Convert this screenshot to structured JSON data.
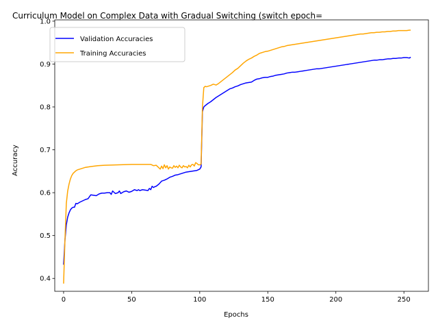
{
  "chart_data": {
    "type": "line",
    "title": "Curriculum Model on Complex Data with Gradual Switching (switch epoch=",
    "xlabel": "Epochs",
    "ylabel": "Accuracy",
    "xlim": [
      -6.5,
      268
    ],
    "ylim": [
      0.37,
      1.003
    ],
    "xticks": [
      0,
      50,
      100,
      150,
      200,
      250
    ],
    "yticks": [
      0.4,
      0.5,
      0.6,
      0.7,
      0.8,
      0.9,
      1.0
    ],
    "ytick_labels": [
      "0.4",
      "0.5",
      "0.6",
      "0.7",
      "0.8",
      "0.9",
      "1.0"
    ],
    "grid": false,
    "legend_position": "upper-left",
    "series": [
      {
        "name": "Validation Accuracies",
        "color": "#0000ff",
        "x": [
          0,
          1,
          2,
          3,
          4,
          5,
          6,
          7,
          8,
          9,
          10,
          12,
          14,
          16,
          18,
          20,
          22,
          24,
          26,
          28,
          30,
          32,
          34,
          35,
          36,
          38,
          40,
          41,
          42,
          44,
          46,
          48,
          50,
          52,
          54,
          55,
          56,
          58,
          60,
          62,
          63,
          64,
          65,
          66,
          67,
          68,
          70,
          72,
          74,
          76,
          78,
          80,
          82,
          84,
          86,
          88,
          90,
          92,
          94,
          96,
          98,
          100,
          101,
          102,
          103,
          104,
          106,
          108,
          110,
          112,
          114,
          116,
          118,
          120,
          122,
          124,
          126,
          128,
          130,
          132,
          134,
          136,
          138,
          140,
          142,
          144,
          146,
          148,
          150,
          152,
          154,
          156,
          158,
          160,
          162,
          164,
          166,
          168,
          170,
          172,
          174,
          176,
          178,
          180,
          182,
          184,
          186,
          188,
          190,
          192,
          194,
          196,
          198,
          200,
          202,
          204,
          206,
          208,
          210,
          212,
          214,
          216,
          218,
          220,
          222,
          224,
          226,
          228,
          230,
          232,
          234,
          236,
          238,
          240,
          242,
          244,
          246,
          248,
          250,
          252,
          254,
          255
        ],
        "y": [
          0.432,
          0.49,
          0.525,
          0.543,
          0.553,
          0.56,
          0.564,
          0.566,
          0.566,
          0.575,
          0.574,
          0.578,
          0.581,
          0.584,
          0.586,
          0.595,
          0.594,
          0.593,
          0.597,
          0.599,
          0.599,
          0.6,
          0.6,
          0.596,
          0.604,
          0.598,
          0.6,
          0.604,
          0.598,
          0.602,
          0.604,
          0.601,
          0.603,
          0.607,
          0.605,
          0.607,
          0.605,
          0.607,
          0.606,
          0.605,
          0.61,
          0.607,
          0.615,
          0.612,
          0.614,
          0.615,
          0.62,
          0.627,
          0.629,
          0.632,
          0.636,
          0.638,
          0.641,
          0.642,
          0.644,
          0.646,
          0.648,
          0.649,
          0.65,
          0.651,
          0.652,
          0.655,
          0.66,
          0.789,
          0.8,
          0.803,
          0.808,
          0.812,
          0.817,
          0.822,
          0.826,
          0.83,
          0.834,
          0.838,
          0.842,
          0.844,
          0.847,
          0.849,
          0.852,
          0.854,
          0.856,
          0.857,
          0.858,
          0.862,
          0.865,
          0.866,
          0.868,
          0.869,
          0.869,
          0.871,
          0.872,
          0.874,
          0.875,
          0.876,
          0.877,
          0.879,
          0.88,
          0.881,
          0.881,
          0.882,
          0.883,
          0.884,
          0.885,
          0.886,
          0.887,
          0.888,
          0.889,
          0.889,
          0.89,
          0.891,
          0.892,
          0.893,
          0.894,
          0.895,
          0.896,
          0.897,
          0.898,
          0.899,
          0.9,
          0.901,
          0.902,
          0.903,
          0.904,
          0.905,
          0.906,
          0.907,
          0.908,
          0.909,
          0.909,
          0.91,
          0.91,
          0.911,
          0.912,
          0.912,
          0.913,
          0.913,
          0.914,
          0.914,
          0.915,
          0.915,
          0.914,
          0.916
        ]
      },
      {
        "name": "Training Accuracies",
        "color": "#ffa500",
        "x": [
          0,
          1,
          2,
          3,
          4,
          5,
          6,
          7,
          8,
          9,
          10,
          12,
          14,
          16,
          18,
          20,
          25,
          30,
          40,
          50,
          60,
          64,
          66,
          68,
          70,
          71,
          72,
          73,
          74,
          75,
          76,
          77,
          78,
          79,
          80,
          81,
          82,
          83,
          84,
          85,
          86,
          87,
          88,
          89,
          90,
          91,
          92,
          93,
          94,
          95,
          96,
          97,
          98,
          99,
          100,
          101,
          102,
          103,
          104,
          105,
          106,
          108,
          110,
          112,
          114,
          116,
          118,
          120,
          122,
          124,
          126,
          128,
          130,
          132,
          134,
          136,
          138,
          140,
          142,
          144,
          146,
          148,
          150,
          152,
          154,
          156,
          158,
          160,
          162,
          164,
          166,
          168,
          170,
          172,
          174,
          176,
          178,
          180,
          182,
          184,
          186,
          188,
          190,
          192,
          194,
          196,
          198,
          200,
          202,
          204,
          206,
          208,
          210,
          212,
          214,
          216,
          218,
          220,
          222,
          224,
          226,
          228,
          230,
          232,
          234,
          236,
          238,
          240,
          242,
          244,
          246,
          248,
          250,
          252,
          254,
          255
        ],
        "y": [
          0.388,
          0.49,
          0.575,
          0.604,
          0.62,
          0.632,
          0.64,
          0.645,
          0.648,
          0.651,
          0.653,
          0.655,
          0.657,
          0.659,
          0.66,
          0.661,
          0.663,
          0.664,
          0.665,
          0.666,
          0.666,
          0.666,
          0.663,
          0.664,
          0.658,
          0.655,
          0.662,
          0.656,
          0.665,
          0.658,
          0.663,
          0.655,
          0.66,
          0.658,
          0.657,
          0.663,
          0.659,
          0.662,
          0.658,
          0.664,
          0.66,
          0.658,
          0.663,
          0.66,
          0.661,
          0.658,
          0.664,
          0.66,
          0.665,
          0.666,
          0.662,
          0.67,
          0.668,
          0.665,
          0.665,
          0.667,
          0.8,
          0.845,
          0.848,
          0.847,
          0.848,
          0.85,
          0.853,
          0.851,
          0.855,
          0.86,
          0.865,
          0.87,
          0.875,
          0.88,
          0.886,
          0.89,
          0.896,
          0.902,
          0.907,
          0.911,
          0.914,
          0.918,
          0.921,
          0.925,
          0.927,
          0.929,
          0.93,
          0.932,
          0.934,
          0.936,
          0.938,
          0.94,
          0.941,
          0.943,
          0.944,
          0.945,
          0.946,
          0.947,
          0.948,
          0.949,
          0.95,
          0.951,
          0.952,
          0.953,
          0.954,
          0.955,
          0.956,
          0.957,
          0.958,
          0.959,
          0.96,
          0.961,
          0.962,
          0.963,
          0.964,
          0.965,
          0.966,
          0.967,
          0.968,
          0.969,
          0.97,
          0.97,
          0.971,
          0.972,
          0.973,
          0.973,
          0.974,
          0.974,
          0.975,
          0.975,
          0.976,
          0.976,
          0.977,
          0.977,
          0.978,
          0.978,
          0.978,
          0.978,
          0.979,
          0.979
        ]
      }
    ]
  }
}
